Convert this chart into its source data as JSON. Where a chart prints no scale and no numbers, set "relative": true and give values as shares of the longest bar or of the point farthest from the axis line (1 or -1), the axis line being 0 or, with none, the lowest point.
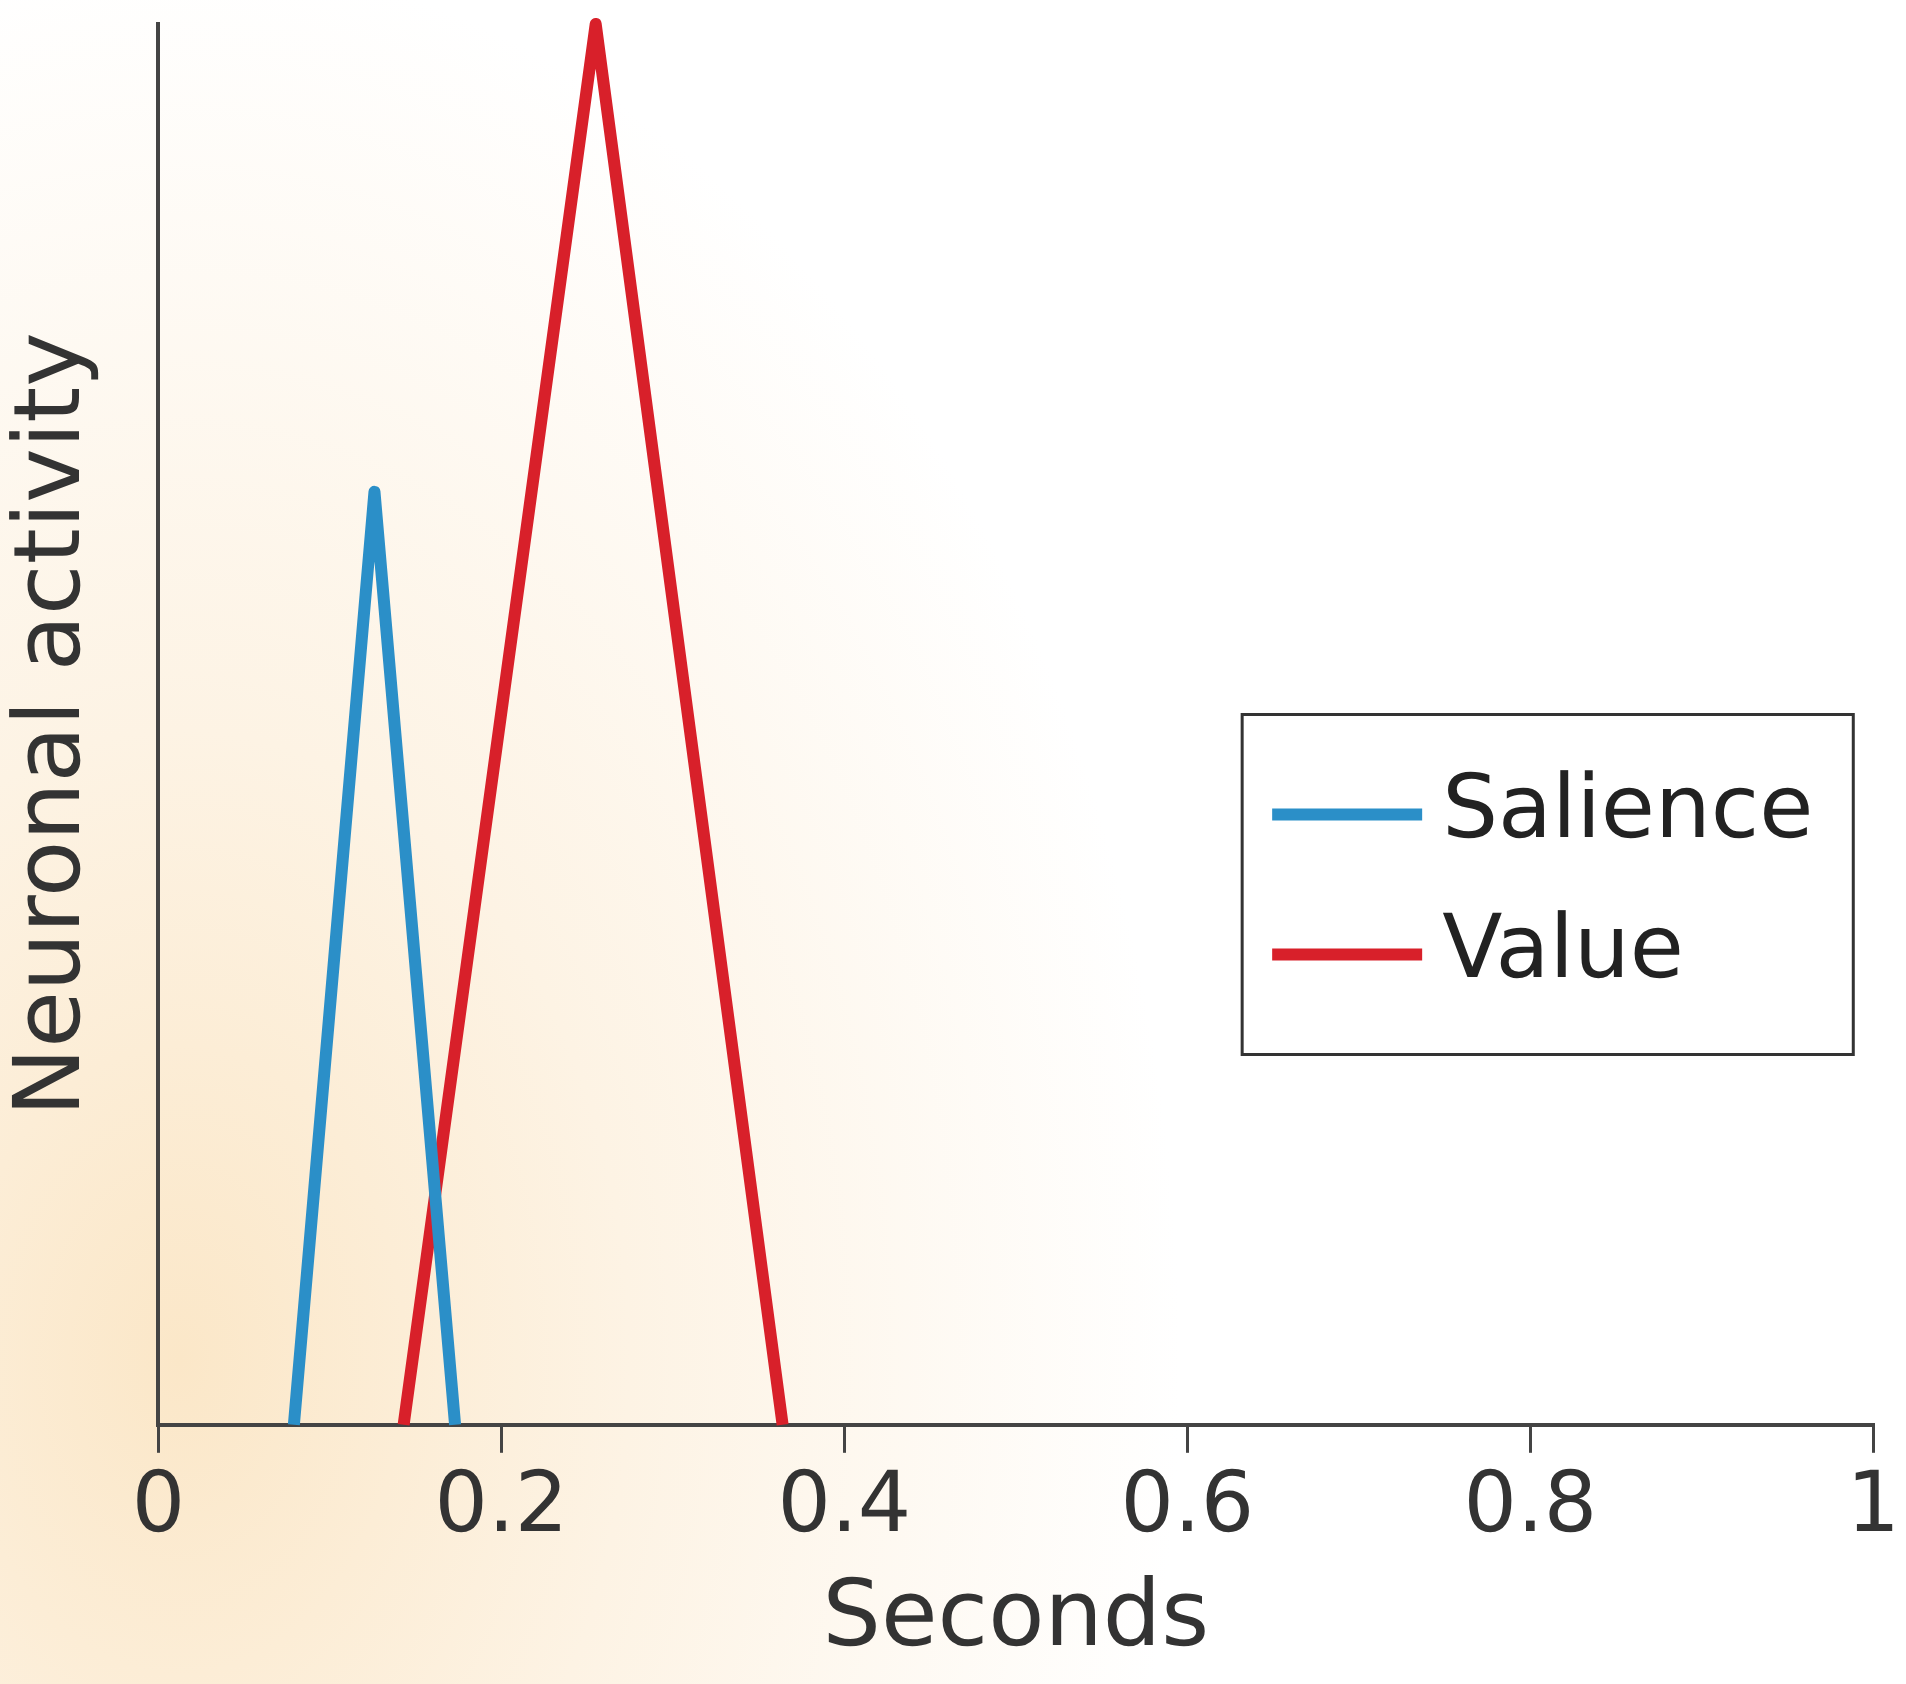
{
  "chart_data": {
    "type": "line",
    "xlabel": "Seconds",
    "ylabel": "Neuronal activity",
    "relative": true,
    "xlim": [
      0,
      1
    ],
    "xticks": [
      0,
      0.2,
      0.4,
      0.6,
      0.8,
      1
    ],
    "grid": false,
    "legend": "right",
    "marker": "none",
    "line_style": "solid",
    "series": [
      {
        "name": "Salience",
        "color": "#2b8fc8",
        "x": [
          0.079,
          0.126,
          0.173
        ],
        "values": [
          0,
          0.666,
          0
        ]
      },
      {
        "name": "Value",
        "color": "#d8202a",
        "x": [
          0.143,
          0.255,
          0.364
        ],
        "values": [
          0,
          1,
          0
        ]
      }
    ]
  }
}
